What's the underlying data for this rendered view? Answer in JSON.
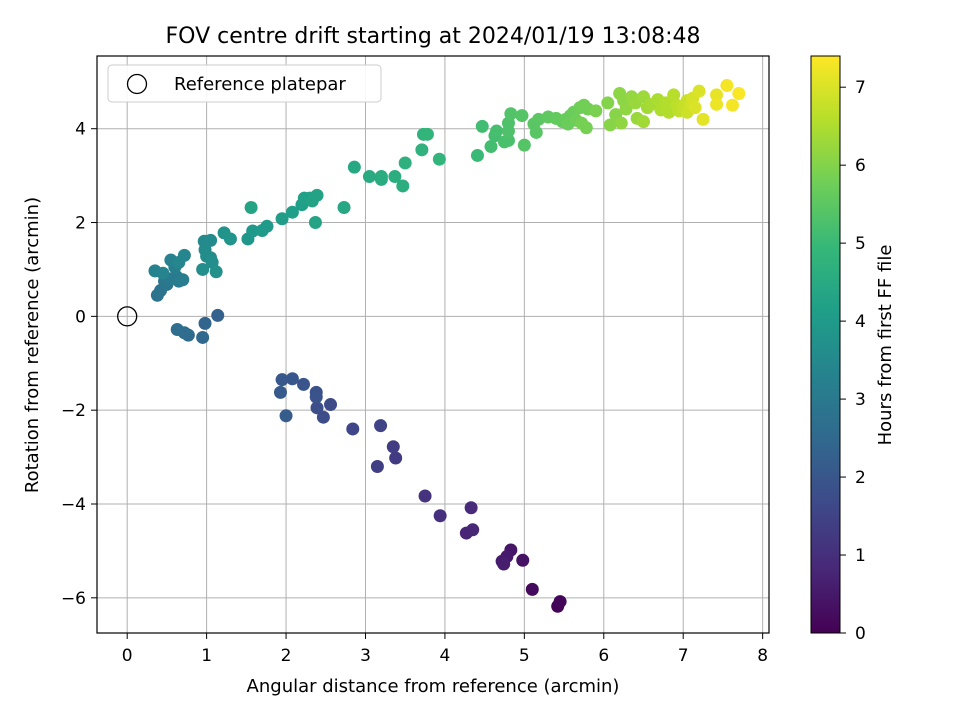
{
  "chart_data": {
    "type": "scatter",
    "title": "FOV centre drift starting at 2024/01/19 13:08:48",
    "xlabel": "Angular distance from reference (arcmin)",
    "ylabel": "Rotation from reference (arcmin)",
    "xlim": [
      -0.38,
      8.08
    ],
    "ylim": [
      -6.75,
      5.55
    ],
    "xticks": [
      0,
      1,
      2,
      3,
      4,
      5,
      6,
      7,
      8
    ],
    "yticks": [
      -6,
      -4,
      -2,
      0,
      2,
      4
    ],
    "ytick_labels": [
      "−6",
      "−4",
      "−2",
      "0",
      "2",
      "4"
    ],
    "grid": true,
    "legend": {
      "position": "top-left",
      "entries": [
        {
          "label": "Reference platepar",
          "marker": "open-circle"
        }
      ]
    },
    "reference_point": {
      "x": 0,
      "y": 0
    },
    "colorbar": {
      "label": "Hours from first FF file",
      "colormap": "viridis",
      "range": [
        0,
        7.4
      ],
      "ticks": [
        0,
        1,
        2,
        3,
        4,
        5,
        6,
        7
      ]
    },
    "colormap_stops": [
      "#440154",
      "#482878",
      "#3e4989",
      "#31688e",
      "#26828e",
      "#1f9e89",
      "#35b779",
      "#6ece58",
      "#b5de2b",
      "#fde725"
    ],
    "point_columns": [
      "x",
      "y",
      "hours"
    ],
    "points": [
      [
        5.42,
        -6.18,
        0.05
      ],
      [
        5.45,
        -6.08,
        0.1
      ],
      [
        5.1,
        -5.82,
        0.2
      ],
      [
        4.98,
        -5.2,
        0.35
      ],
      [
        4.83,
        -4.98,
        0.45
      ],
      [
        4.78,
        -5.12,
        0.5
      ],
      [
        4.72,
        -5.22,
        0.55
      ],
      [
        4.74,
        -5.28,
        0.6
      ],
      [
        4.27,
        -4.62,
        0.75
      ],
      [
        4.35,
        -4.55,
        0.8
      ],
      [
        4.33,
        -4.08,
        0.9
      ],
      [
        3.94,
        -4.25,
        1.0
      ],
      [
        3.75,
        -3.83,
        1.1
      ],
      [
        3.38,
        -3.02,
        1.3
      ],
      [
        3.35,
        -2.78,
        1.35
      ],
      [
        3.15,
        -3.2,
        1.4
      ],
      [
        3.19,
        -2.33,
        1.5
      ],
      [
        2.84,
        -2.4,
        1.6
      ],
      [
        2.56,
        -1.88,
        1.7
      ],
      [
        2.47,
        -2.15,
        1.75
      ],
      [
        2.39,
        -1.95,
        1.8
      ],
      [
        2.38,
        -1.62,
        1.85
      ],
      [
        2.38,
        -1.72,
        1.9
      ],
      [
        2.22,
        -1.45,
        1.95
      ],
      [
        2.08,
        -1.33,
        2.0
      ],
      [
        1.95,
        -1.35,
        2.05
      ],
      [
        1.93,
        -1.62,
        2.1
      ],
      [
        2.0,
        -2.12,
        2.15
      ],
      [
        1.14,
        0.02,
        2.3
      ],
      [
        0.98,
        -0.15,
        2.4
      ],
      [
        0.95,
        -0.45,
        2.5
      ],
      [
        0.77,
        -0.4,
        2.55
      ],
      [
        0.72,
        -0.35,
        2.6
      ],
      [
        0.63,
        -0.28,
        2.65
      ],
      [
        0.38,
        0.45,
        2.8
      ],
      [
        0.42,
        0.55,
        2.85
      ],
      [
        0.5,
        0.68,
        2.9
      ],
      [
        0.47,
        0.75,
        2.95
      ],
      [
        0.55,
        0.8,
        3.0
      ],
      [
        0.62,
        0.85,
        3.05
      ],
      [
        0.65,
        0.75,
        3.1
      ],
      [
        0.7,
        0.78,
        3.15
      ],
      [
        0.6,
        1.05,
        3.2
      ],
      [
        0.55,
        1.2,
        3.25
      ],
      [
        0.35,
        0.97,
        3.3
      ],
      [
        0.45,
        0.92,
        3.35
      ],
      [
        0.65,
        1.15,
        3.4
      ],
      [
        0.72,
        1.3,
        3.45
      ],
      [
        0.97,
        1.6,
        3.5
      ],
      [
        1.05,
        1.62,
        3.55
      ],
      [
        0.98,
        1.42,
        3.55
      ],
      [
        1.0,
        1.28,
        3.6
      ],
      [
        1.05,
        1.25,
        3.6
      ],
      [
        1.07,
        1.15,
        3.65
      ],
      [
        0.95,
        1.0,
        3.65
      ],
      [
        1.12,
        0.95,
        3.7
      ],
      [
        1.22,
        1.78,
        3.8
      ],
      [
        1.3,
        1.65,
        3.85
      ],
      [
        1.52,
        1.65,
        3.9
      ],
      [
        1.58,
        1.82,
        3.95
      ],
      [
        1.7,
        1.83,
        4.0
      ],
      [
        1.76,
        1.92,
        4.0
      ],
      [
        1.95,
        2.08,
        4.05
      ],
      [
        2.08,
        2.22,
        4.1
      ],
      [
        2.2,
        2.38,
        4.15
      ],
      [
        2.23,
        2.52,
        4.2
      ],
      [
        2.3,
        2.52,
        4.2
      ],
      [
        2.33,
        2.46,
        4.25
      ],
      [
        2.39,
        2.58,
        4.25
      ],
      [
        2.37,
        2.0,
        4.3
      ],
      [
        1.56,
        2.32,
        4.3
      ],
      [
        2.73,
        2.32,
        4.4
      ],
      [
        2.86,
        3.18,
        4.45
      ],
      [
        3.05,
        2.98,
        4.5
      ],
      [
        3.2,
        2.92,
        4.5
      ],
      [
        3.2,
        2.98,
        4.55
      ],
      [
        3.37,
        2.98,
        4.6
      ],
      [
        3.47,
        2.78,
        4.6
      ],
      [
        3.5,
        3.27,
        4.7
      ],
      [
        3.71,
        3.55,
        4.75
      ],
      [
        3.73,
        3.88,
        4.8
      ],
      [
        3.78,
        3.88,
        4.85
      ],
      [
        3.93,
        3.35,
        4.85
      ],
      [
        4.41,
        3.43,
        5.0
      ],
      [
        4.47,
        4.05,
        5.1
      ],
      [
        4.58,
        3.62,
        5.15
      ],
      [
        4.63,
        3.85,
        5.15
      ],
      [
        4.65,
        3.95,
        5.2
      ],
      [
        4.75,
        3.72,
        5.25
      ],
      [
        4.8,
        3.75,
        5.25
      ],
      [
        4.8,
        4.12,
        5.3
      ],
      [
        4.8,
        3.95,
        5.3
      ],
      [
        4.83,
        4.32,
        5.35
      ],
      [
        5.0,
        3.65,
        5.4
      ],
      [
        4.97,
        4.28,
        5.4
      ],
      [
        5.12,
        4.1,
        5.45
      ],
      [
        5.15,
        3.92,
        5.45
      ],
      [
        5.18,
        4.2,
        5.5
      ],
      [
        5.3,
        4.25,
        5.55
      ],
      [
        5.4,
        4.22,
        5.6
      ],
      [
        5.48,
        4.15,
        5.6
      ],
      [
        5.52,
        4.2,
        5.65
      ],
      [
        5.58,
        4.28,
        5.65
      ],
      [
        5.55,
        4.1,
        5.7
      ],
      [
        5.62,
        4.35,
        5.7
      ],
      [
        5.65,
        4.18,
        5.75
      ],
      [
        5.7,
        4.45,
        5.75
      ],
      [
        5.75,
        4.5,
        5.8
      ],
      [
        5.8,
        4.42,
        5.8
      ],
      [
        5.72,
        4.12,
        5.85
      ],
      [
        5.78,
        4.02,
        5.85
      ],
      [
        5.9,
        4.38,
        5.9
      ],
      [
        6.05,
        4.55,
        6.0
      ],
      [
        6.08,
        4.08,
        6.05
      ],
      [
        6.15,
        4.3,
        6.05
      ],
      [
        6.2,
        4.75,
        6.1
      ],
      [
        6.25,
        4.6,
        6.1
      ],
      [
        6.22,
        4.12,
        6.15
      ],
      [
        6.28,
        4.42,
        6.15
      ],
      [
        6.35,
        4.68,
        6.2
      ],
      [
        6.4,
        4.55,
        6.25
      ],
      [
        6.42,
        4.22,
        6.25
      ],
      [
        6.5,
        4.68,
        6.3
      ],
      [
        6.55,
        4.45,
        6.35
      ],
      [
        6.5,
        4.15,
        6.35
      ],
      [
        6.6,
        4.52,
        6.4
      ],
      [
        6.68,
        4.62,
        6.45
      ],
      [
        6.72,
        4.4,
        6.5
      ],
      [
        6.78,
        4.55,
        6.55
      ],
      [
        6.82,
        4.35,
        6.55
      ],
      [
        6.88,
        4.72,
        6.6
      ],
      [
        6.92,
        4.5,
        6.65
      ],
      [
        6.95,
        4.38,
        6.7
      ],
      [
        7.0,
        4.48,
        6.75
      ],
      [
        7.05,
        4.6,
        6.8
      ],
      [
        7.05,
        4.35,
        6.85
      ],
      [
        7.1,
        4.52,
        6.9
      ],
      [
        7.12,
        4.65,
        6.95
      ],
      [
        7.15,
        4.45,
        7.0
      ],
      [
        7.2,
        4.8,
        7.0
      ],
      [
        7.25,
        4.2,
        7.1
      ],
      [
        7.42,
        4.72,
        7.15
      ],
      [
        7.42,
        4.52,
        7.2
      ],
      [
        7.55,
        4.92,
        7.3
      ],
      [
        7.62,
        4.5,
        7.3
      ],
      [
        7.7,
        4.75,
        7.35
      ]
    ]
  }
}
